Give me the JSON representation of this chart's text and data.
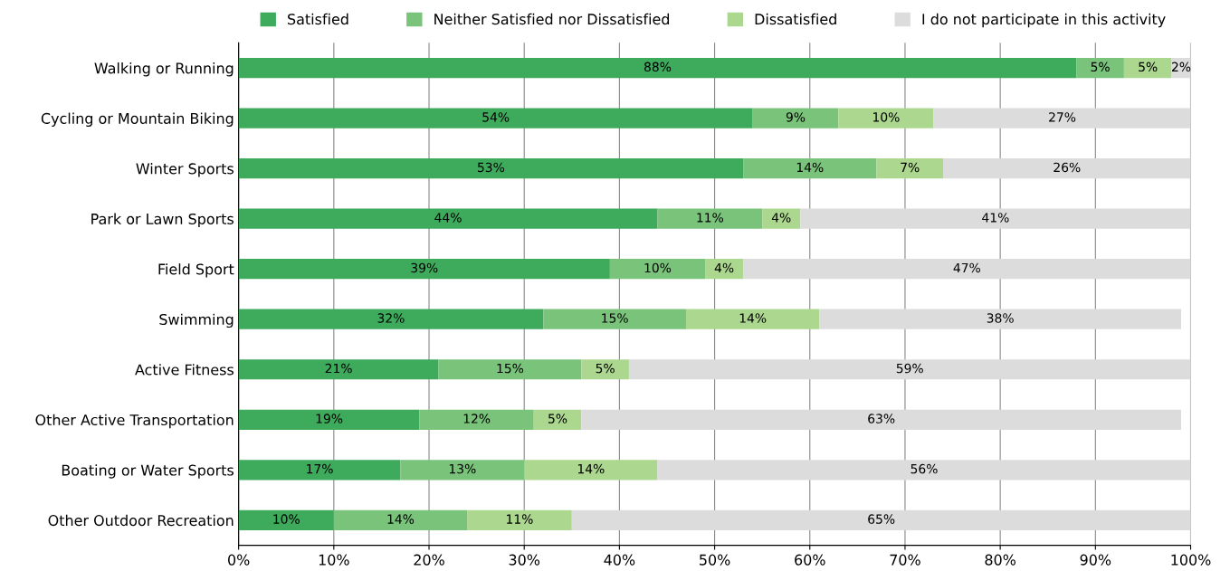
{
  "chart_data": {
    "type": "bar",
    "orientation": "horizontal",
    "stacked": true,
    "grid": "x",
    "legend": "top",
    "categories": [
      "Walking or Running",
      "Cycling or Mountain Biking",
      "Winter Sports",
      "Park or Lawn Sports",
      "Field Sport",
      "Swimming",
      "Active Fitness",
      "Other Active Transportation",
      "Boating or Water Sports",
      "Other Outdoor Recreation"
    ],
    "series": [
      {
        "name": "Satisfied",
        "color": "#3daa5c",
        "values": [
          88,
          54,
          53,
          44,
          39,
          32,
          21,
          19,
          17,
          10
        ],
        "value_labels": [
          "88%",
          "54%",
          "53%",
          "44%",
          "39%",
          "32%",
          "21%",
          "19%",
          "17%",
          "10%"
        ]
      },
      {
        "name": "Neither Satisfied nor Dissatisfied",
        "color": "#79c37a",
        "values": [
          5,
          9,
          14,
          11,
          10,
          15,
          15,
          12,
          13,
          14
        ],
        "value_labels": [
          "5%",
          "9%",
          "14%",
          "11%",
          "10%",
          "15%",
          "15%",
          "12%",
          "13%",
          "14%"
        ]
      },
      {
        "name": "Dissatisfied",
        "color": "#acd78e",
        "values": [
          5,
          10,
          7,
          4,
          4,
          14,
          5,
          5,
          14,
          11
        ],
        "value_labels": [
          "5%",
          "10%",
          "7%",
          "4%",
          "4%",
          "14%",
          "5%",
          "5%",
          "14%",
          "11%"
        ]
      },
      {
        "name": "I do not participate in this activity",
        "color": "#dcdcdc",
        "values": [
          2,
          27,
          26,
          41,
          47,
          38,
          59,
          63,
          56,
          65
        ],
        "value_labels": [
          "2%",
          "27%",
          "26%",
          "41%",
          "47%",
          "38%",
          "59%",
          "63%",
          "56%",
          "65%"
        ]
      }
    ],
    "xlim": [
      0,
      100
    ],
    "xticks": [
      {
        "value": 0,
        "label": "0%"
      },
      {
        "value": 10,
        "label": "10%"
      },
      {
        "value": 20,
        "label": "20%"
      },
      {
        "value": 30,
        "label": "30%"
      },
      {
        "value": 40,
        "label": "40%"
      },
      {
        "value": 50,
        "label": "50%"
      },
      {
        "value": 60,
        "label": "60%"
      },
      {
        "value": 70,
        "label": "70%"
      },
      {
        "value": 80,
        "label": "80%"
      },
      {
        "value": 90,
        "label": "90%"
      },
      {
        "value": 100,
        "label": "100%"
      }
    ]
  }
}
